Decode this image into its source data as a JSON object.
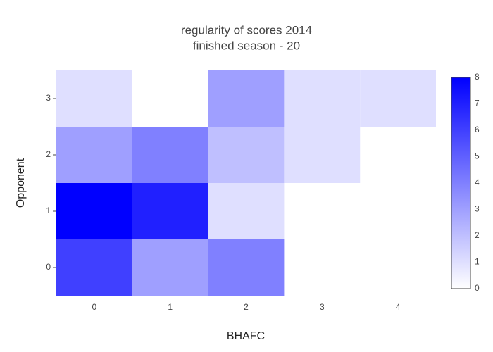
{
  "chart_data": {
    "type": "heatmap",
    "title": "regularity of scores 2014",
    "subtitle": "finished season - 20",
    "x_label": "BHAFC",
    "y_label": "Opponent",
    "x": [
      0,
      1,
      2,
      3,
      4
    ],
    "y": [
      0,
      1,
      2,
      3
    ],
    "z": [
      [
        6,
        3,
        4,
        null,
        null
      ],
      [
        8,
        7,
        1,
        null,
        null
      ],
      [
        3,
        4,
        2,
        1,
        null
      ],
      [
        1,
        null,
        3,
        1,
        1
      ]
    ],
    "xlim": [
      -0.5,
      4.5
    ],
    "ylim": [
      -0.5,
      3.5
    ],
    "xticks": [
      0,
      1,
      2,
      3,
      4
    ],
    "yticks": [
      0,
      1,
      2,
      3
    ],
    "colorscale": [
      "#ffffff",
      "#0000ff"
    ],
    "zlim": [
      0,
      8
    ],
    "colorbar_ticks": [
      0,
      1,
      2,
      3,
      4,
      5,
      6,
      7,
      8
    ]
  }
}
